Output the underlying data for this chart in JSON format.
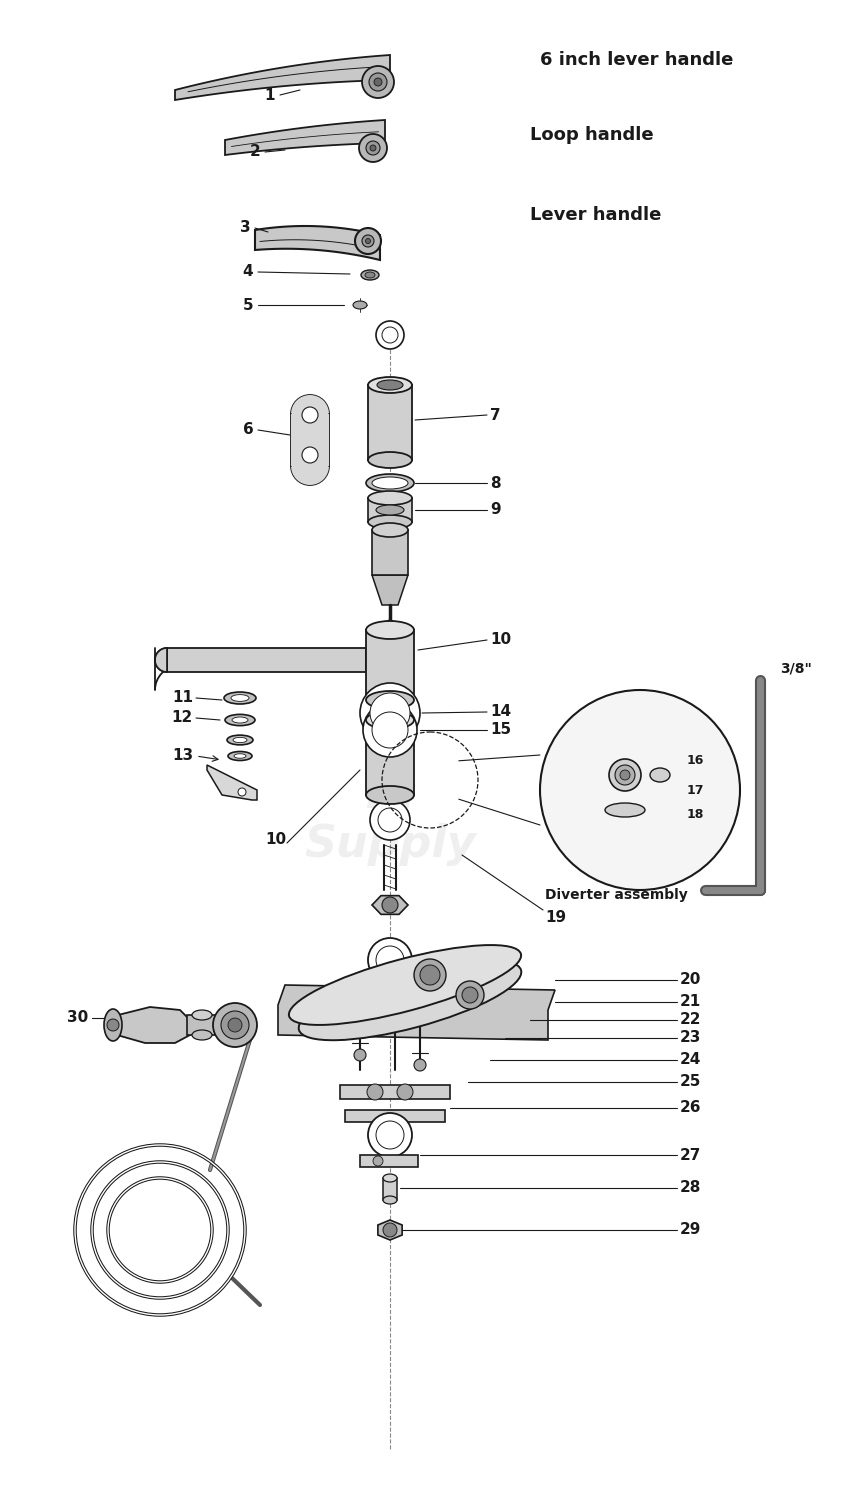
{
  "bg_color": "#ffffff",
  "line_color": "#1a1a1a",
  "text_color": "#1a1a1a",
  "watermark_color": "#cccccc",
  "label_fs": 11,
  "bold_fs": 13,
  "parts_labels": {
    "1": "6 inch lever handle",
    "2": "Loop handle",
    "3": "Lever handle",
    "19": "Diverter assembly",
    "3_8": "3/8\""
  }
}
